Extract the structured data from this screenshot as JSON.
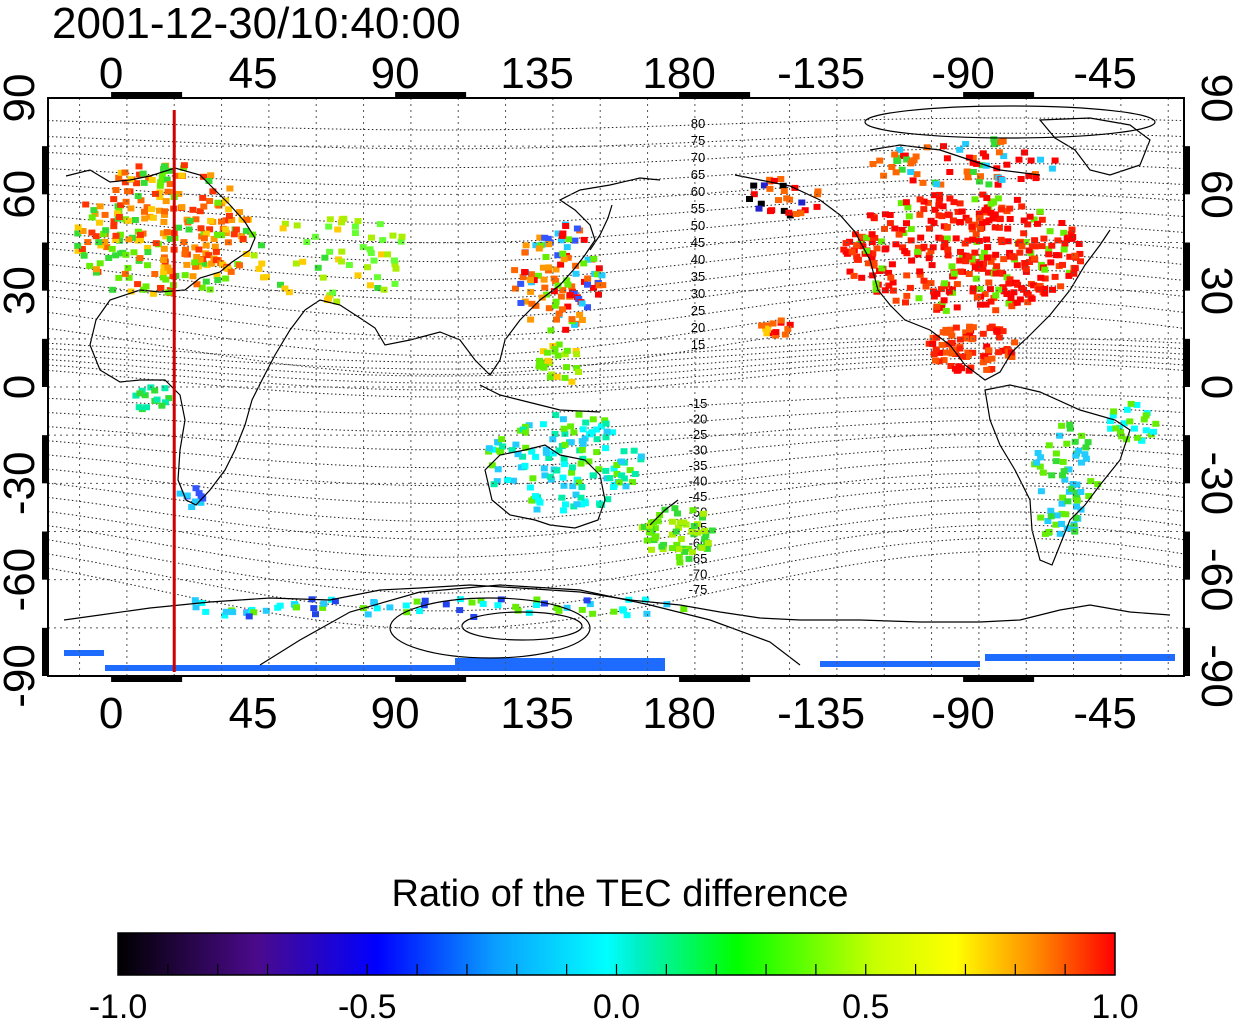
{
  "title": "2001-12-30/10:40:00",
  "map": {
    "top_lon_labels": [
      "0",
      "45",
      "90",
      "135",
      "180",
      "-135",
      "-90",
      "-45"
    ],
    "bottom_lon_labels": [
      "0",
      "45",
      "90",
      "135",
      "180",
      "-135",
      "-90",
      "-45"
    ],
    "left_lat_labels": [
      "90",
      "60",
      "30",
      "0",
      "-30",
      "-60",
      "-90"
    ],
    "right_lat_labels": [
      "90",
      "60",
      "30",
      "0",
      "-30",
      "-60",
      "-90"
    ],
    "north_contour_labels": [
      "80",
      "75",
      "70",
      "65",
      "60",
      "55",
      "50",
      "45",
      "40",
      "35",
      "30",
      "25",
      "20",
      "15"
    ],
    "south_contour_labels": [
      "-15",
      "-20",
      "-25",
      "-30",
      "-35",
      "-40",
      "-45",
      "-50",
      "-55",
      "-60",
      "-65",
      "-70",
      "-75"
    ],
    "marker_line_color": "#d00000",
    "marker_longitude": 20
  },
  "colorbar": {
    "title": "Ratio of the TEC difference",
    "tick_labels": [
      "-1.0",
      "-0.5",
      "0.0",
      "0.5",
      "1.0"
    ],
    "colors": [
      "#000000",
      "#5a0aa0",
      "#0000ff",
      "#00ffff",
      "#00ff00",
      "#ffff00",
      "#ff8000",
      "#ff0000"
    ]
  }
}
